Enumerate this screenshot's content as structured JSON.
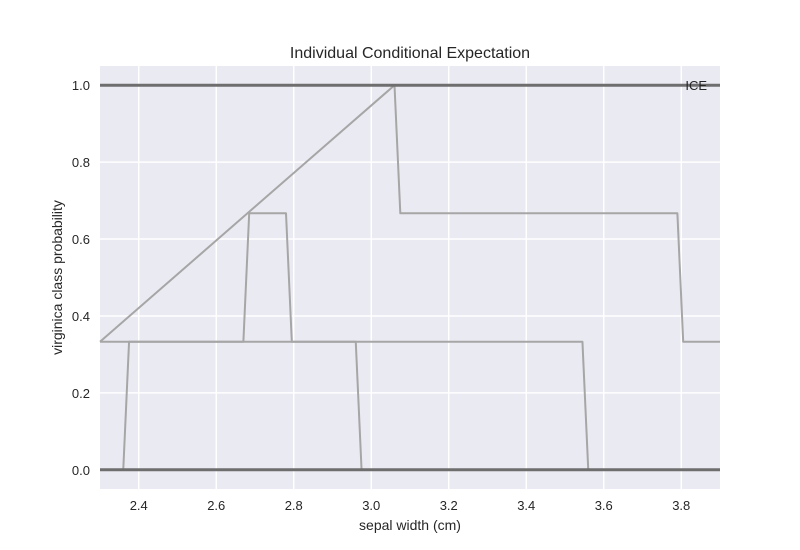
{
  "chart_data": {
    "type": "line",
    "title": "Individual Conditional Expectation",
    "xlabel": "sepal width (cm)",
    "ylabel": "virginica class probability",
    "xlim": [
      2.3,
      3.9
    ],
    "ylim": [
      -0.05,
      1.05
    ],
    "xticks": [
      2.4,
      2.6,
      2.8,
      3.0,
      3.2,
      3.4,
      3.6,
      3.8
    ],
    "xtick_labels": [
      "2.4",
      "2.6",
      "2.8",
      "3.0",
      "3.2",
      "3.4",
      "3.6",
      "3.8"
    ],
    "yticks": [
      0.0,
      0.2,
      0.4,
      0.6,
      0.8,
      1.0
    ],
    "ytick_labels": [
      "0.0",
      "0.2",
      "0.4",
      "0.6",
      "0.8",
      "1.0"
    ],
    "grid": true,
    "legend": {
      "position": "top-right",
      "entries": [
        "ICE"
      ]
    },
    "series": [
      {
        "x": [
          2.3,
          3.9
        ],
        "y": [
          1.0,
          1.0
        ],
        "emphasis": "bold"
      },
      {
        "x": [
          2.3,
          3.9
        ],
        "y": [
          0.0,
          0.0
        ],
        "emphasis": "bold"
      },
      {
        "x": [
          2.3,
          2.36,
          2.375,
          3.545,
          3.56,
          3.9
        ],
        "y": [
          0.0,
          0.0,
          0.333,
          0.333,
          0.0,
          0.0
        ]
      },
      {
        "x": [
          2.3,
          2.67,
          2.685,
          2.78,
          2.795,
          2.96,
          2.975,
          3.9
        ],
        "y": [
          0.333,
          0.333,
          0.667,
          0.667,
          0.333,
          0.333,
          0.0,
          0.0
        ]
      },
      {
        "x": [
          2.3,
          3.06,
          3.075,
          3.79,
          3.805,
          3.9
        ],
        "y": [
          0.333,
          1.0,
          0.667,
          0.667,
          0.333,
          0.333
        ]
      }
    ],
    "colors": {
      "background": "#eaeaf2",
      "grid": "#ffffff",
      "line": "#a6a6a6",
      "bold_line": "#6e6e6e"
    }
  }
}
